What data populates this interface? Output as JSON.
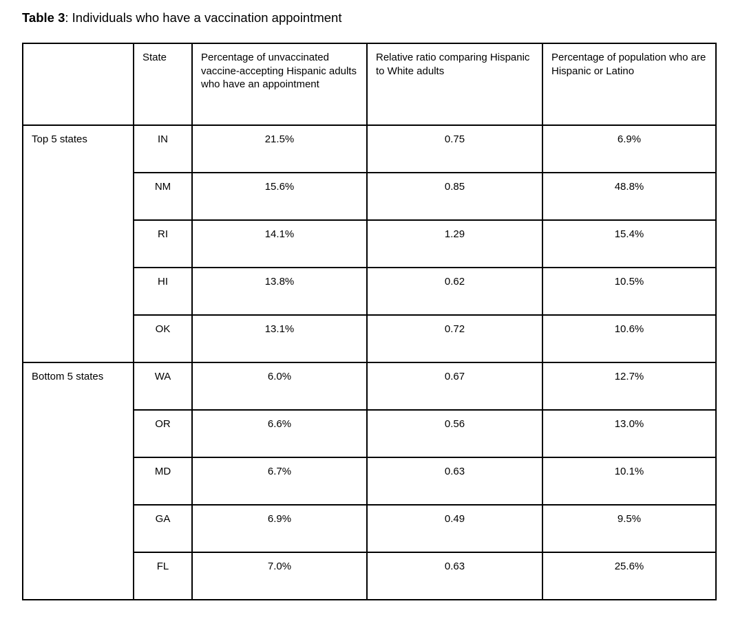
{
  "caption": {
    "label": "Table 3",
    "text": ": Individuals who have a vaccination appointment"
  },
  "table": {
    "headers": [
      "",
      "State",
      "Percentage of unvaccinated vaccine-accepting Hispanic adults who have an appointment",
      "Relative ratio comparing Hispanic to White adults",
      "Percentage of population who are Hispanic or Latino"
    ],
    "groups": [
      {
        "label": "Top 5 states",
        "rows": [
          {
            "state": "IN",
            "pct_appointment": "21.5%",
            "relative_ratio": "0.75",
            "pct_hispanic": "6.9%"
          },
          {
            "state": "NM",
            "pct_appointment": "15.6%",
            "relative_ratio": "0.85",
            "pct_hispanic": "48.8%"
          },
          {
            "state": "RI",
            "pct_appointment": "14.1%",
            "relative_ratio": "1.29",
            "pct_hispanic": "15.4%"
          },
          {
            "state": "HI",
            "pct_appointment": "13.8%",
            "relative_ratio": "0.62",
            "pct_hispanic": "10.5%"
          },
          {
            "state": "OK",
            "pct_appointment": "13.1%",
            "relative_ratio": "0.72",
            "pct_hispanic": "10.6%"
          }
        ]
      },
      {
        "label": "Bottom 5 states",
        "rows": [
          {
            "state": "WA",
            "pct_appointment": "6.0%",
            "relative_ratio": "0.67",
            "pct_hispanic": "12.7%"
          },
          {
            "state": "OR",
            "pct_appointment": "6.6%",
            "relative_ratio": "0.56",
            "pct_hispanic": "13.0%"
          },
          {
            "state": "MD",
            "pct_appointment": "6.7%",
            "relative_ratio": "0.63",
            "pct_hispanic": "10.1%"
          },
          {
            "state": "GA",
            "pct_appointment": "6.9%",
            "relative_ratio": "0.49",
            "pct_hispanic": "9.5%"
          },
          {
            "state": "FL",
            "pct_appointment": "7.0%",
            "relative_ratio": "0.63",
            "pct_hispanic": "25.6%"
          }
        ]
      }
    ],
    "colors": {
      "border": "#000000",
      "text": "#000000",
      "background": "#ffffff"
    }
  }
}
